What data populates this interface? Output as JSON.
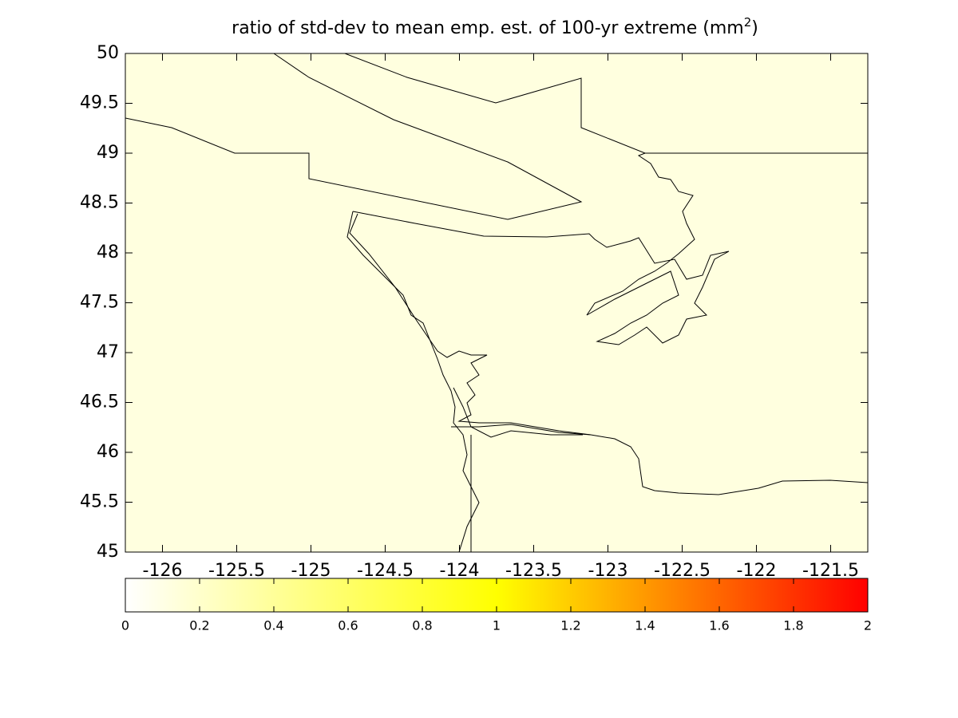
{
  "chart_data": {
    "type": "map",
    "title": {
      "text": "ratio of std-dev to mean emp. est. of 100-yr extreme (mm",
      "superscript": "2",
      "end": ")"
    },
    "xlim": [
      -126.25,
      -121.25
    ],
    "ylim": [
      45,
      50
    ],
    "xticks": [
      -126,
      -125.5,
      -125,
      -124.5,
      -124,
      -123.5,
      -123,
      -122.5,
      -122,
      -121.5
    ],
    "yticks": [
      45,
      45.5,
      46,
      46.5,
      47,
      47.5,
      48,
      48.5,
      49,
      49.5,
      50
    ],
    "fill": "#ffffdf",
    "colorbar": {
      "clim": [
        0,
        2
      ],
      "ticks": [
        0,
        0.2,
        0.4,
        0.6,
        0.8,
        1,
        1.2,
        1.4,
        1.6,
        1.8,
        2
      ],
      "colors": [
        "#ffffff",
        "#ffff00",
        "#ff0000"
      ]
    }
  }
}
